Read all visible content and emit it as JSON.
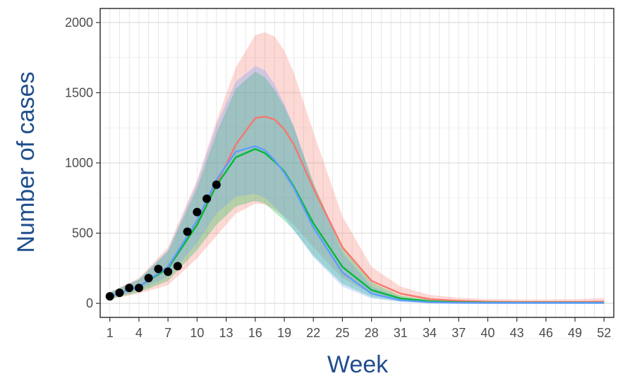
{
  "chart_data": {
    "type": "line",
    "title": "",
    "xlabel": "Week",
    "ylabel": "Number of cases",
    "xlim": [
      0,
      53
    ],
    "ylim": [
      -100,
      2100
    ],
    "grid": true,
    "legend": "none",
    "x_ticks": [
      1,
      4,
      7,
      10,
      13,
      16,
      19,
      22,
      25,
      28,
      31,
      34,
      37,
      40,
      43,
      46,
      49,
      52
    ],
    "y_ticks": [
      0,
      500,
      1000,
      1500,
      2000
    ],
    "observed": {
      "x": [
        1,
        2,
        3,
        4,
        5,
        6,
        7,
        8,
        9,
        10,
        11,
        12
      ],
      "y": [
        50,
        75,
        110,
        110,
        180,
        245,
        225,
        265,
        510,
        650,
        745,
        845
      ]
    },
    "series": [
      {
        "color": "#f8766d",
        "x": [
          1,
          4,
          7,
          10,
          12,
          14,
          16,
          17,
          18,
          19,
          20,
          22,
          25,
          28,
          31,
          34,
          37,
          40,
          43,
          46,
          49,
          52
        ],
        "y": [
          50,
          120,
          250,
          560,
          850,
          1130,
          1320,
          1330,
          1310,
          1240,
          1130,
          820,
          400,
          160,
          70,
          30,
          18,
          12,
          10,
          10,
          10,
          12
        ],
        "lower": [
          30,
          70,
          130,
          320,
          480,
          640,
          710,
          705,
          670,
          620,
          560,
          400,
          180,
          70,
          25,
          10,
          5,
          3,
          2,
          2,
          2,
          2
        ],
        "upper": [
          80,
          180,
          400,
          880,
          1300,
          1680,
          1910,
          1930,
          1900,
          1800,
          1640,
          1220,
          620,
          260,
          120,
          60,
          40,
          30,
          28,
          28,
          30,
          38
        ]
      },
      {
        "color": "#00ba38",
        "x": [
          1,
          4,
          7,
          10,
          12,
          14,
          16,
          17,
          18,
          19,
          20,
          22,
          25,
          28,
          31,
          34,
          37,
          40,
          43,
          46,
          49,
          52
        ],
        "y": [
          50,
          120,
          250,
          560,
          840,
          1040,
          1100,
          1070,
          1010,
          940,
          830,
          570,
          260,
          95,
          35,
          15,
          8,
          6,
          5,
          5,
          5,
          5
        ],
        "lower": [
          30,
          80,
          160,
          380,
          560,
          690,
          730,
          710,
          650,
          590,
          520,
          340,
          140,
          45,
          15,
          5,
          2,
          1,
          1,
          1,
          1,
          1
        ],
        "upper": [
          80,
          170,
          370,
          820,
          1210,
          1530,
          1650,
          1610,
          1520,
          1400,
          1250,
          860,
          390,
          150,
          55,
          25,
          14,
          10,
          8,
          8,
          8,
          8
        ]
      },
      {
        "color": "#619cff",
        "x": [
          1,
          4,
          7,
          10,
          12,
          14,
          16,
          17,
          18,
          19,
          20,
          22,
          25,
          28,
          31,
          34,
          37,
          40,
          43,
          46,
          49,
          52
        ],
        "y": [
          50,
          120,
          260,
          590,
          880,
          1080,
          1120,
          1090,
          1020,
          930,
          820,
          540,
          220,
          70,
          22,
          8,
          4,
          3,
          3,
          3,
          3,
          3
        ],
        "lower": [
          35,
          95,
          190,
          430,
          640,
          760,
          780,
          750,
          690,
          610,
          520,
          330,
          120,
          35,
          10,
          3,
          1,
          1,
          1,
          1,
          1,
          1
        ],
        "upper": [
          75,
          170,
          380,
          860,
          1270,
          1580,
          1690,
          1660,
          1560,
          1420,
          1260,
          850,
          360,
          120,
          40,
          15,
          8,
          6,
          5,
          5,
          5,
          5
        ]
      }
    ]
  }
}
